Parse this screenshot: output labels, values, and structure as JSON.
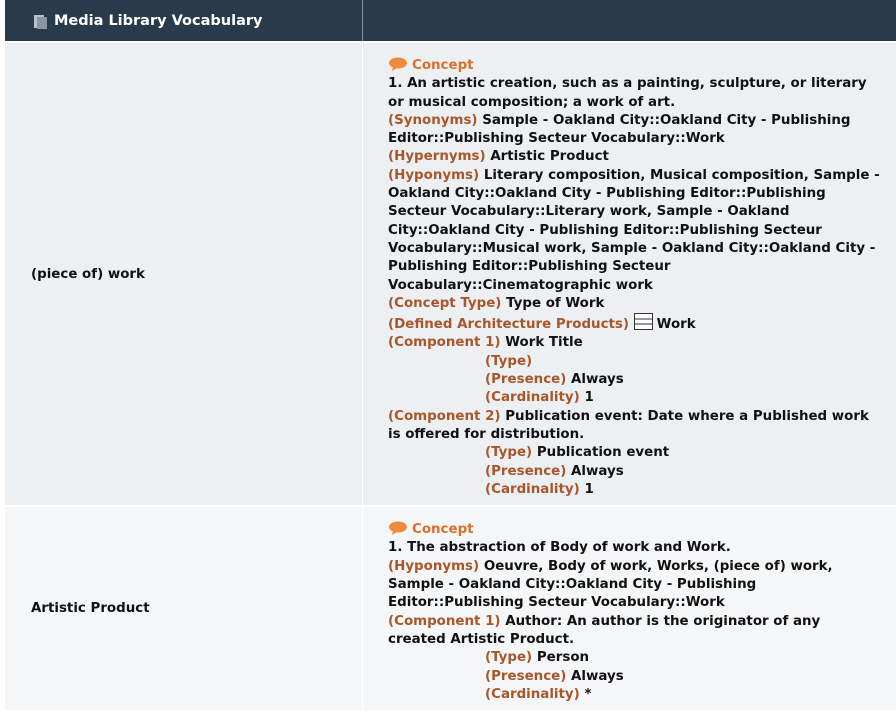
{
  "header": {
    "title": "Media Library Vocabulary"
  },
  "rows": [
    {
      "term": "(piece of) work",
      "kind": "Concept",
      "definition": "1. An artistic creation, such as a painting, sculpture, or literary or musical composition; a work of art.",
      "fields": [
        {
          "label": "(Synonyms)",
          "value": "Sample - Oakland City::Oakland City - Publishing Editor::Publishing Secteur Vocabulary::Work"
        },
        {
          "label": "(Hypernyms)",
          "value": "Artistic Product"
        },
        {
          "label": "(Hyponyms)",
          "value": "Literary composition, Musical composition, Sample - Oakland City::Oakland City - Publishing Editor::Publishing Secteur Vocabulary::Literary work, Sample - Oakland City::Oakland City - Publishing Editor::Publishing Secteur Vocabulary::Musical work, Sample - Oakland City::Oakland City - Publishing Editor::Publishing Secteur Vocabulary::Cinematographic work"
        },
        {
          "label": "(Concept Type)",
          "value": "Type of Work"
        },
        {
          "label": "(Defined Architecture Products)",
          "value": "Work"
        }
      ],
      "components": [
        {
          "label": "(Component 1)",
          "value": "Work Title",
          "details": [
            {
              "label": "(Type)"
            },
            {
              "label": "(Presence)",
              "value": "Always"
            },
            {
              "label": "(Cardinality)",
              "value": "1"
            }
          ]
        },
        {
          "label": "(Component 2)",
          "value": "Publication event: Date where a Published work is offered for distribution.",
          "details": [
            {
              "label": "(Type)",
              "value": "Publication event"
            },
            {
              "label": "(Presence)",
              "value": "Always"
            },
            {
              "label": "(Cardinality)",
              "value": "1"
            }
          ]
        }
      ]
    },
    {
      "term": "Artistic Product",
      "kind": "Concept",
      "definition": "1. The abstraction of Body of work and Work.",
      "fields": [
        {
          "label": "(Hyponyms)",
          "value": "Oeuvre, Body of work, Works, (piece of) work, Sample - Oakland City::Oakland City - Publishing Editor::Publishing Secteur Vocabulary::Work"
        }
      ],
      "components": [
        {
          "label": "(Component 1)",
          "value": "Author: An author is the originator of any created Artistic Product.",
          "details": [
            {
              "label": "(Type)",
              "value": "Person"
            },
            {
              "label": "(Presence)",
              "value": "Always"
            },
            {
              "label": "(Cardinality)",
              "value": "*"
            }
          ]
        }
      ]
    }
  ]
}
